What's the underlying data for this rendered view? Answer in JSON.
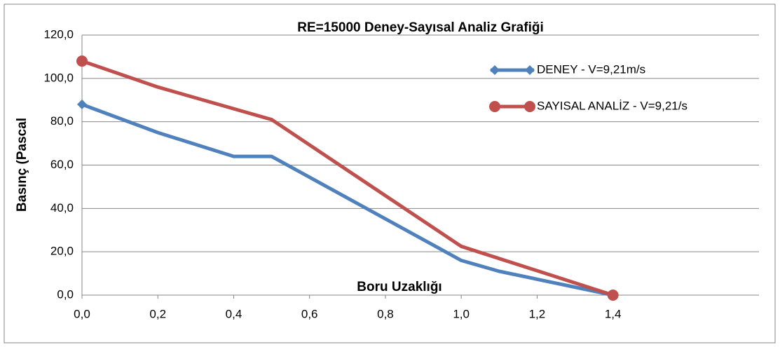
{
  "chart_data": {
    "type": "line",
    "title": "RE=15000 Deney-Sayısal Analiz Grafiği",
    "x_label": "Boru Uzaklığı",
    "y_label": "Basınç (Pascal",
    "xlim": [
      0,
      1.785
    ],
    "ylim": [
      0,
      120
    ],
    "xticks": [
      {
        "value": 0,
        "label": "0,0"
      },
      {
        "value": 0.2,
        "label": "0,2"
      },
      {
        "value": 0.4,
        "label": "0,4"
      },
      {
        "value": 0.6,
        "label": "0,6"
      },
      {
        "value": 0.8,
        "label": "0,8"
      },
      {
        "value": 1.0,
        "label": "1,0"
      },
      {
        "value": 1.2,
        "label": "1,2"
      },
      {
        "value": 1.4,
        "label": "1,4"
      }
    ],
    "yticks": [
      {
        "value": 0,
        "label": "0,0"
      },
      {
        "value": 20,
        "label": "20,0"
      },
      {
        "value": 40,
        "label": "40,0"
      },
      {
        "value": 60,
        "label": "60,0"
      },
      {
        "value": 80,
        "label": "80,0"
      },
      {
        "value": 100,
        "label": "100,0"
      },
      {
        "value": 120,
        "label": "120,0"
      }
    ],
    "grid": true,
    "legend": "upper right",
    "series": [
      {
        "name": "DENEY - V=9,21m/s",
        "color": "#4f81bd",
        "marker": "diamond",
        "x": [
          0,
          0.2,
          0.4,
          0.5,
          1.0,
          1.1,
          1.4
        ],
        "values": [
          88,
          75,
          64,
          64,
          16,
          11,
          0
        ]
      },
      {
        "name": "SAYISAL ANALİZ - V=9,21/s",
        "color": "#c0504d",
        "marker": "circle",
        "x": [
          0,
          0.2,
          0.4,
          0.5,
          1.0,
          1.4
        ],
        "values": [
          108,
          96,
          86,
          81,
          22.5,
          0
        ]
      }
    ]
  }
}
